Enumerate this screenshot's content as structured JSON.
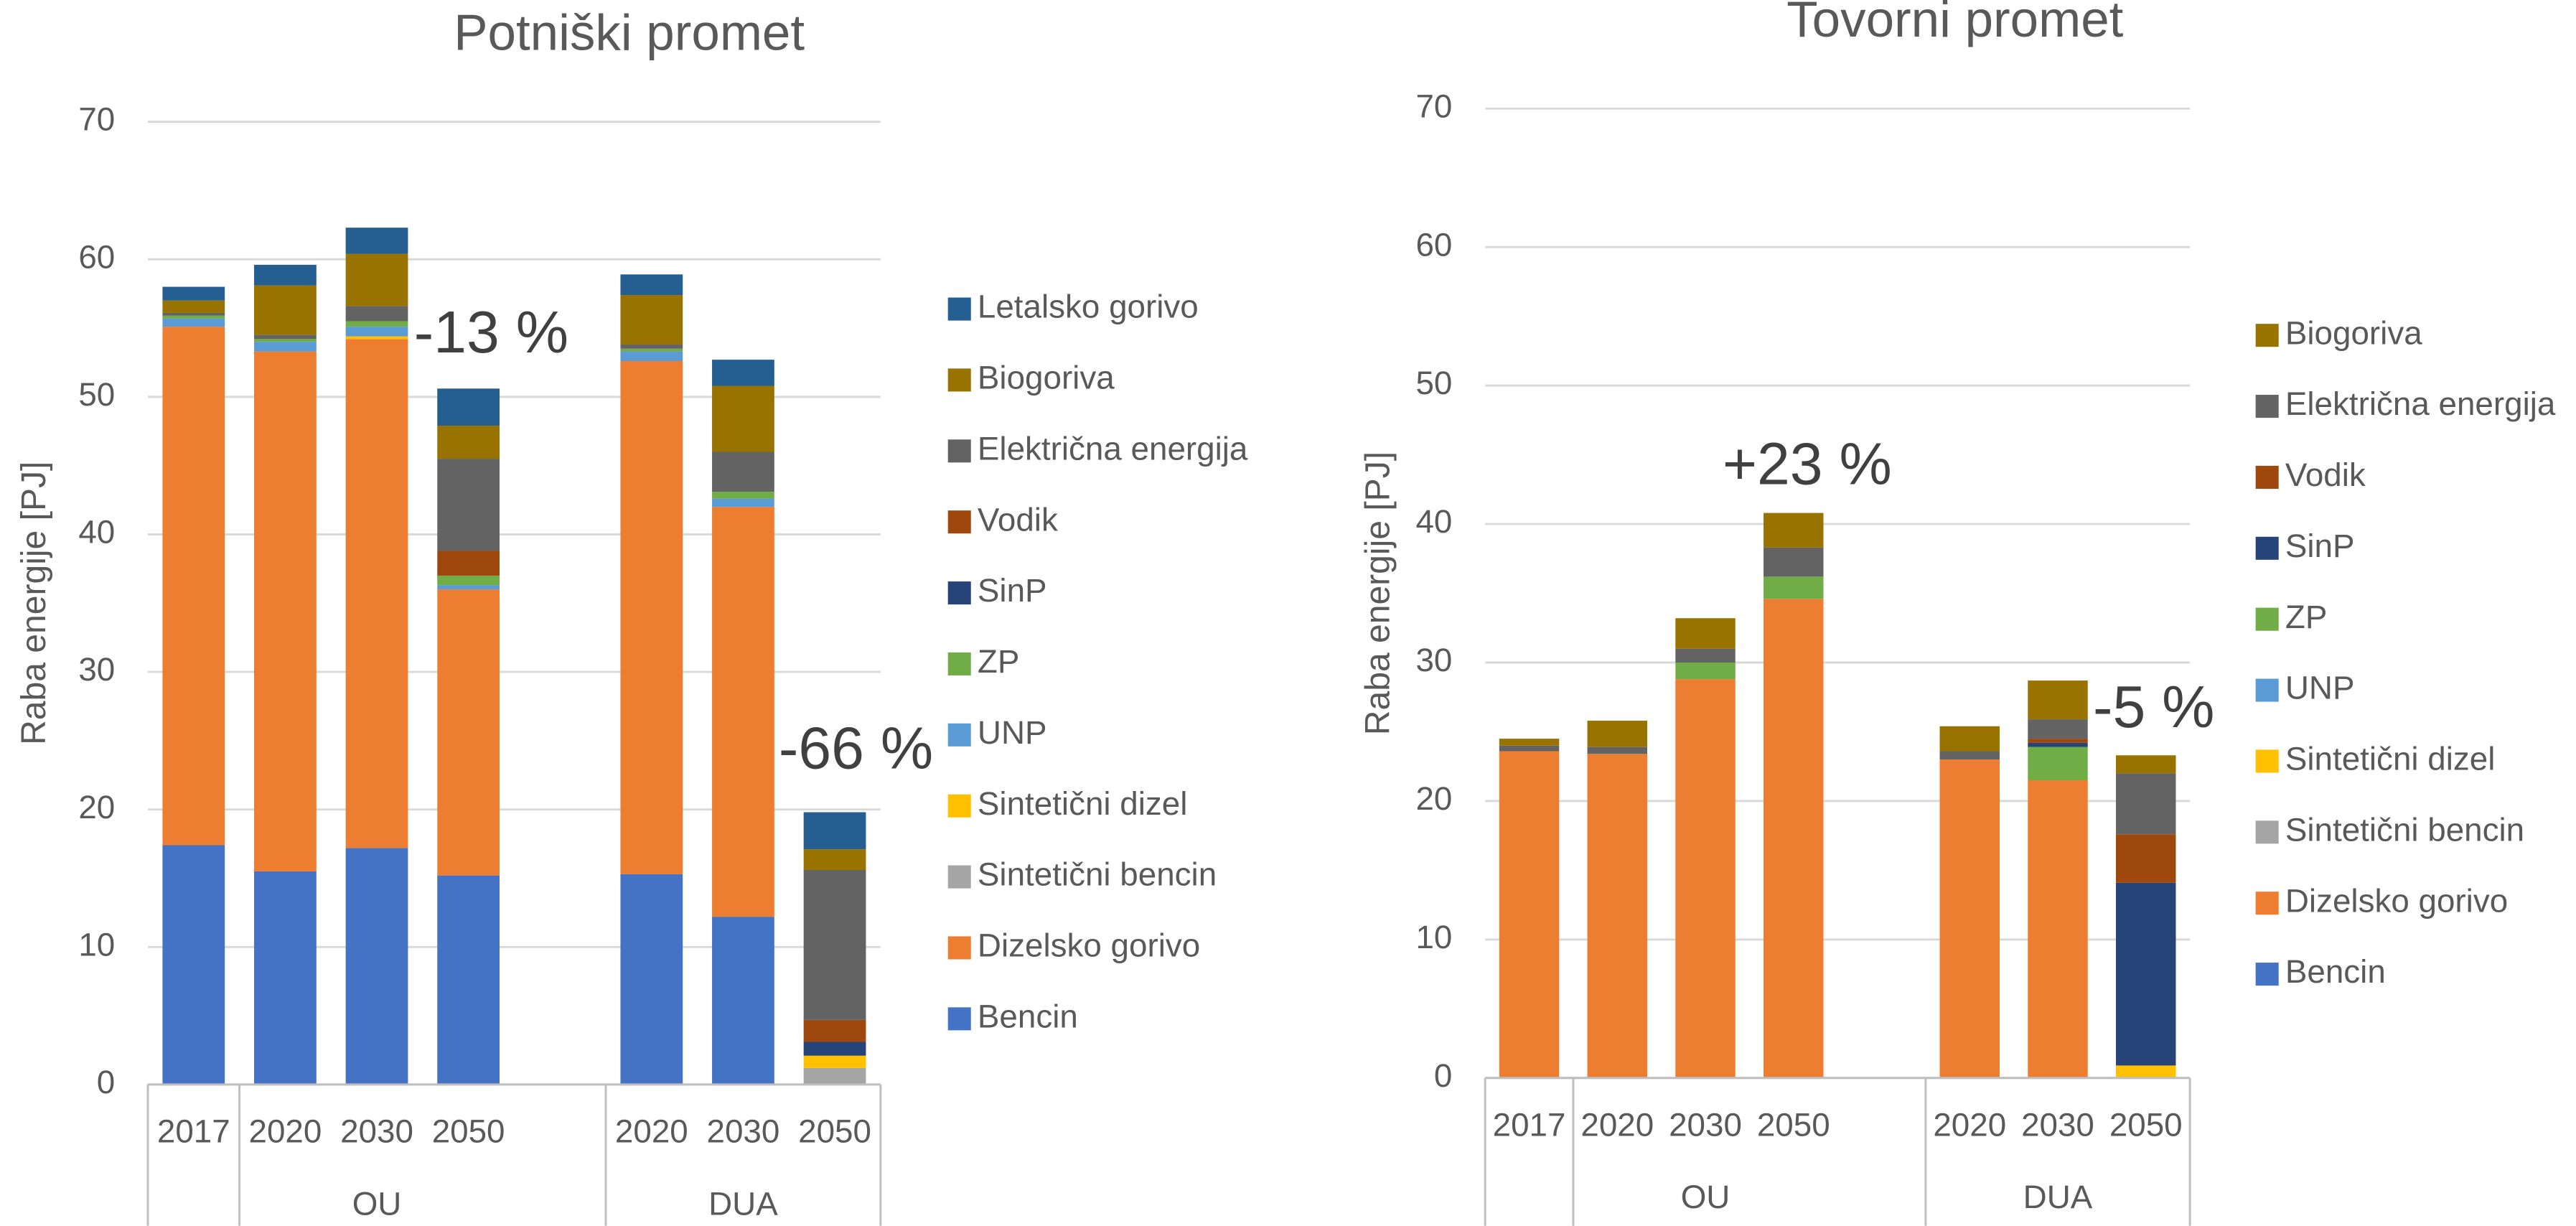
{
  "chart_data": [
    {
      "type": "bar",
      "stacked": true,
      "title": "Potniški promet",
      "y_label": "Raba energije [PJ]",
      "categories": [
        "2017",
        "2020",
        "2030",
        "2050",
        null,
        "2020",
        "2030",
        "2050"
      ],
      "groups": [
        null,
        "OU",
        "OU",
        "OU",
        null,
        "DUA",
        "DUA",
        "DUA"
      ],
      "ylim": [
        0,
        70
      ],
      "yticks": [
        0,
        10,
        20,
        30,
        40,
        50,
        60,
        70
      ],
      "grid": true,
      "series": [
        {
          "name": "Bencin",
          "color": "#4472c4",
          "values": [
            17.4,
            15.5,
            17.2,
            15.2,
            null,
            15.3,
            12.2,
            0
          ]
        },
        {
          "name": "Dizelsko gorivo",
          "color": "#ed7d31",
          "values": [
            37.7,
            37.8,
            37.0,
            20.8,
            null,
            37.3,
            29.8,
            0
          ]
        },
        {
          "name": "Sintetični bencin",
          "color": "#a5a5a5",
          "values": [
            0,
            0,
            0,
            0,
            null,
            0,
            0,
            1.2
          ]
        },
        {
          "name": "Sintetični dizel",
          "color": "#ffc000",
          "values": [
            0,
            0,
            0.2,
            0,
            null,
            0,
            0,
            0.9
          ]
        },
        {
          "name": "UNP",
          "color": "#5b9bd5",
          "values": [
            0.6,
            0.7,
            0.7,
            0.3,
            null,
            0.7,
            0.6,
            0
          ]
        },
        {
          "name": "ZP",
          "color": "#70ad47",
          "values": [
            0.2,
            0.2,
            0.4,
            0.7,
            null,
            0.2,
            0.5,
            0
          ]
        },
        {
          "name": "SinP",
          "color": "#264478",
          "values": [
            0,
            0,
            0,
            0,
            null,
            0,
            0,
            1.0
          ]
        },
        {
          "name": "Vodik",
          "color": "#9e480e",
          "values": [
            0,
            0,
            0,
            1.8,
            null,
            0,
            0,
            1.6
          ]
        },
        {
          "name": "Električna energija",
          "color": "#636363",
          "values": [
            0.2,
            0.3,
            1.1,
            6.7,
            null,
            0.3,
            2.9,
            10.9
          ]
        },
        {
          "name": "Biogoriva",
          "color": "#997300",
          "values": [
            0.9,
            3.6,
            3.8,
            2.4,
            null,
            3.6,
            4.8,
            1.5
          ]
        },
        {
          "name": "Letalsko gorivo",
          "color": "#255e91",
          "values": [
            1.0,
            1.5,
            1.9,
            2.7,
            null,
            1.5,
            1.9,
            2.7
          ]
        }
      ],
      "annotations": [
        "-13 %",
        "-66 %"
      ]
    },
    {
      "type": "bar",
      "stacked": true,
      "title": "Tovorni promet",
      "y_label": "Raba energije [PJ]",
      "categories": [
        "2017",
        "2020",
        "2030",
        "2050",
        null,
        "2020",
        "2030",
        "2050"
      ],
      "groups": [
        null,
        "OU",
        "OU",
        "OU",
        null,
        "DUA",
        "DUA",
        "DUA"
      ],
      "ylim": [
        0,
        70
      ],
      "yticks": [
        0,
        10,
        20,
        30,
        40,
        50,
        60,
        70
      ],
      "grid": true,
      "series": [
        {
          "name": "Bencin",
          "color": "#4472c4",
          "values": [
            0,
            0,
            0,
            0,
            null,
            0,
            0,
            0
          ]
        },
        {
          "name": "Dizelsko gorivo",
          "color": "#ed7d31",
          "values": [
            23.6,
            23.4,
            28.8,
            34.6,
            null,
            23.0,
            21.5,
            0
          ]
        },
        {
          "name": "Sintetični bencin",
          "color": "#a5a5a5",
          "values": [
            0,
            0,
            0,
            0,
            null,
            0,
            0,
            0
          ]
        },
        {
          "name": "Sintetični dizel",
          "color": "#ffc000",
          "values": [
            0,
            0,
            0,
            0,
            null,
            0,
            0,
            0.9
          ]
        },
        {
          "name": "UNP",
          "color": "#5b9bd5",
          "values": [
            0,
            0,
            0,
            0,
            null,
            0,
            0,
            0
          ]
        },
        {
          "name": "ZP",
          "color": "#70ad47",
          "values": [
            0,
            0,
            1.2,
            1.6,
            null,
            0,
            2.4,
            0
          ]
        },
        {
          "name": "SinP",
          "color": "#264478",
          "values": [
            0,
            0,
            0,
            0,
            null,
            0,
            0.3,
            13.2
          ]
        },
        {
          "name": "Vodik",
          "color": "#9e480e",
          "values": [
            0,
            0,
            0,
            0,
            null,
            0,
            0.3,
            3.5
          ]
        },
        {
          "name": "Električna energija",
          "color": "#636363",
          "values": [
            0.4,
            0.5,
            1.0,
            2.1,
            null,
            0.6,
            1.4,
            4.4
          ]
        },
        {
          "name": "Biogoriva",
          "color": "#997300",
          "values": [
            0.5,
            1.9,
            2.2,
            2.5,
            null,
            1.8,
            2.8,
            1.3
          ]
        }
      ],
      "annotations": [
        "+23 %",
        "-5 %"
      ]
    }
  ]
}
